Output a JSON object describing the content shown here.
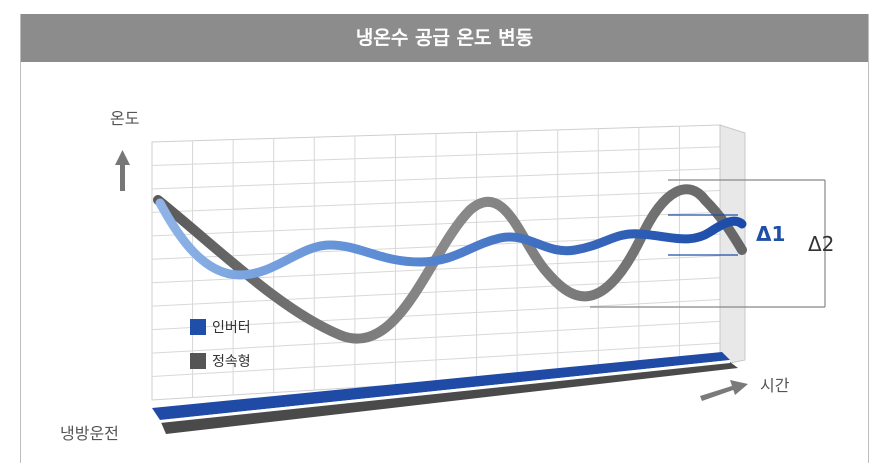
{
  "chart_data": {
    "type": "line",
    "title": "냉온수 공급 온도 변동",
    "ylabel": "온도",
    "xlabel": "시간",
    "bottom_label": "냉방운전",
    "series": [
      {
        "name": "인버터",
        "color": "#1f4fa8"
      },
      {
        "name": "정속형",
        "color": "#555555"
      }
    ],
    "annotations": [
      "Δ1",
      "Δ2"
    ],
    "grid": true
  }
}
